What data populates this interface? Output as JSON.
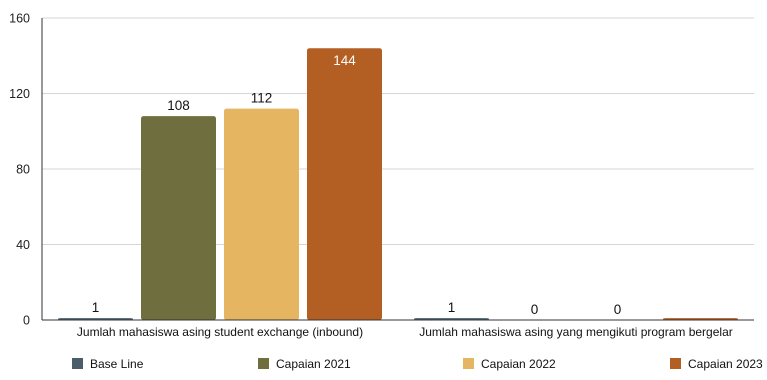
{
  "chart_data": {
    "type": "bar",
    "title": "",
    "xlabel": "",
    "ylabel": "",
    "ylim": [
      0,
      160
    ],
    "yticks": [
      0,
      40,
      80,
      120,
      160
    ],
    "grid": true,
    "legend_position": "bottom",
    "categories": [
      "Jumlah mahasiswa asing student exchange (inbound)",
      "Jumlah mahasiswa asing yang mengikuti program bergelar"
    ],
    "series": [
      {
        "name": "Base Line",
        "color": "#4a5e6a",
        "values": [
          1,
          1
        ],
        "labels": [
          "1",
          "1"
        ]
      },
      {
        "name": "Capaian 2021",
        "color": "#6e6e3e",
        "values": [
          108,
          0
        ],
        "labels": [
          "108",
          "0"
        ]
      },
      {
        "name": "Capaian 2022",
        "color": "#e6b562",
        "values": [
          112,
          0
        ],
        "labels": [
          "112",
          "0"
        ]
      },
      {
        "name": "Capaian 2023",
        "color": "#b35e22",
        "values": [
          144,
          1
        ],
        "labels": [
          "144",
          ""
        ]
      }
    ]
  }
}
